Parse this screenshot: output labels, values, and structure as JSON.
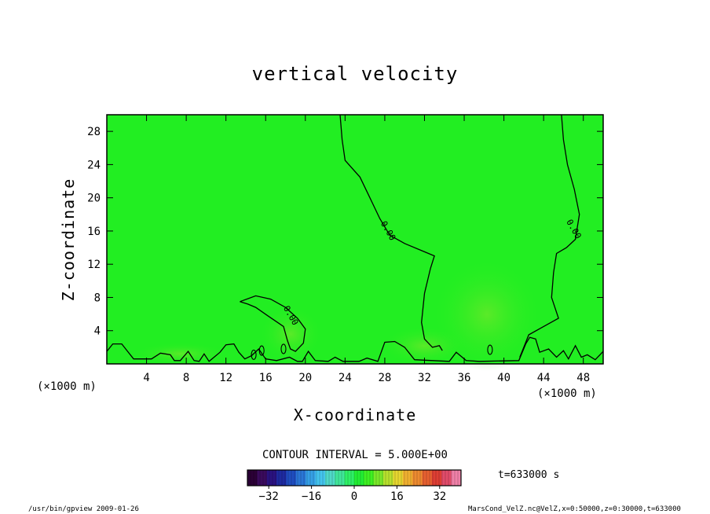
{
  "chart_data": {
    "type": "heatmap",
    "title": "vertical velocity",
    "xlabel": "X-coordinate",
    "ylabel": "Z-coordinate",
    "x_unit_label": "(×1000 m)",
    "y_unit_label": "(×1000 m)",
    "xlim": [
      0,
      50
    ],
    "ylim": [
      0,
      30
    ],
    "x_ticks": [
      4,
      8,
      12,
      16,
      20,
      24,
      28,
      32,
      36,
      40,
      44,
      48
    ],
    "y_ticks": [
      4,
      8,
      12,
      16,
      20,
      24,
      28
    ],
    "field_value": 0,
    "contour_interval_text": "CONTOUR INTERVAL = 5.000E+00",
    "contour_label": "0.00",
    "contours": [
      {
        "name": "zero-contour-1",
        "points": [
          [
            23.5,
            30
          ],
          [
            23.7,
            27
          ],
          [
            24,
            24.5
          ],
          [
            25.5,
            22.5
          ],
          [
            26.5,
            20
          ],
          [
            27.5,
            17.5
          ],
          [
            28.5,
            15.5
          ],
          [
            30,
            14.5
          ],
          [
            32,
            13.5
          ],
          [
            33,
            13
          ],
          [
            32.6,
            11.5
          ],
          [
            32,
            8.5
          ],
          [
            31.7,
            5
          ],
          [
            32,
            3
          ],
          [
            32.8,
            2
          ],
          [
            33.5,
            2.2
          ],
          [
            33.8,
            1.6
          ]
        ]
      },
      {
        "name": "zero-contour-2",
        "points": [
          [
            45.8,
            30
          ],
          [
            46,
            27
          ],
          [
            46.4,
            24
          ],
          [
            47.1,
            21
          ],
          [
            47.6,
            18
          ],
          [
            47.2,
            15
          ],
          [
            46.3,
            14
          ],
          [
            45.3,
            13.3
          ],
          [
            45,
            11
          ],
          [
            44.8,
            8
          ],
          [
            45.5,
            5.5
          ],
          [
            44,
            4.5
          ],
          [
            42.5,
            3.5
          ],
          [
            42,
            2
          ],
          [
            41.6,
            0.8
          ]
        ]
      },
      {
        "name": "zero-contour-3",
        "points": [
          [
            13.4,
            7.5
          ],
          [
            15,
            8.2
          ],
          [
            16.5,
            7.8
          ],
          [
            18,
            6.8
          ],
          [
            19.2,
            5.5
          ],
          [
            20,
            4.2
          ],
          [
            19.8,
            2.5
          ],
          [
            19,
            1.5
          ],
          [
            18.5,
            1.8
          ],
          [
            18.2,
            2.8
          ],
          [
            17.8,
            4.5
          ],
          [
            16.2,
            5.8
          ],
          [
            15,
            6.8
          ],
          [
            14.2,
            7.2
          ],
          [
            13.4,
            7.5
          ]
        ]
      },
      {
        "name": "surface-contour",
        "points": [
          [
            0,
            1.5
          ],
          [
            0.6,
            2.4
          ],
          [
            1.5,
            2.4
          ],
          [
            2.1,
            1.5
          ],
          [
            2.7,
            0.6
          ],
          [
            4.5,
            0.6
          ],
          [
            5.4,
            1.3
          ],
          [
            6.4,
            1.1
          ],
          [
            6.8,
            0.4
          ],
          [
            7.4,
            0.4
          ],
          [
            8.2,
            1.5
          ],
          [
            8.8,
            0.4
          ],
          [
            9.3,
            0.3
          ],
          [
            9.8,
            1.2
          ],
          [
            10.3,
            0.3
          ],
          [
            11.4,
            1.4
          ],
          [
            12,
            2.3
          ],
          [
            12.8,
            2.4
          ],
          [
            13.3,
            1.4
          ],
          [
            13.9,
            0.6
          ],
          [
            14.6,
            1.0
          ],
          [
            15.3,
            1.8
          ],
          [
            16,
            0.6
          ],
          [
            17.1,
            0.4
          ],
          [
            18.4,
            0.8
          ],
          [
            19.2,
            0.3
          ],
          [
            19.7,
            0.3
          ],
          [
            20.3,
            1.5
          ],
          [
            21,
            0.4
          ],
          [
            22.3,
            0.3
          ],
          [
            23,
            0.8
          ],
          [
            23.8,
            0.3
          ],
          [
            25.4,
            0.3
          ],
          [
            26.2,
            0.7
          ],
          [
            27.3,
            0.3
          ],
          [
            28,
            2.6
          ],
          [
            29,
            2.7
          ],
          [
            30,
            2.0
          ],
          [
            31,
            0.5
          ],
          [
            34.5,
            0.3
          ],
          [
            35.2,
            1.4
          ],
          [
            36.2,
            0.4
          ],
          [
            37.5,
            0.3
          ],
          [
            41.5,
            0.4
          ],
          [
            42.2,
            2.4
          ],
          [
            42.6,
            3.2
          ],
          [
            43.2,
            3.0
          ],
          [
            43.6,
            1.4
          ],
          [
            44.5,
            1.8
          ],
          [
            45.3,
            0.8
          ],
          [
            46,
            1.6
          ],
          [
            46.5,
            0.6
          ],
          [
            47.2,
            2.2
          ],
          [
            47.8,
            0.8
          ],
          [
            48.4,
            1.1
          ],
          [
            49.2,
            0.5
          ],
          [
            50,
            1.5
          ]
        ]
      }
    ],
    "label_positions": [
      [
        28.3,
        16
      ],
      [
        47,
        16.2
      ],
      [
        18.5,
        5.8
      ]
    ],
    "small_contours": [
      [
        14.8,
        1.1
      ],
      [
        15.6,
        1.6
      ],
      [
        17.8,
        1.8
      ],
      [
        38.6,
        1.7
      ]
    ],
    "colorbar": {
      "ticks": [
        -32,
        -16,
        0,
        16,
        32
      ],
      "range": [
        -40,
        40
      ],
      "colors": [
        "#2b0036",
        "#3a0a5c",
        "#2a1280",
        "#1e2aa0",
        "#1f4dc0",
        "#2a76d6",
        "#36a0e6",
        "#44c4ee",
        "#4fd9c8",
        "#40e69a",
        "#2ef066",
        "#22ee33",
        "#3ef022",
        "#7ae82a",
        "#b8e02e",
        "#e6d630",
        "#f0b030",
        "#ec8a30",
        "#e66030",
        "#de3e34",
        "#e04c6a",
        "#ef80a8"
      ]
    },
    "time_label": "t=633000 s",
    "footer_left": "/usr/bin/gpview   2009-01-26",
    "footer_right": "MarsCond_VelZ.nc@VelZ,x=0:50000,z=0:30000,t=633000"
  }
}
